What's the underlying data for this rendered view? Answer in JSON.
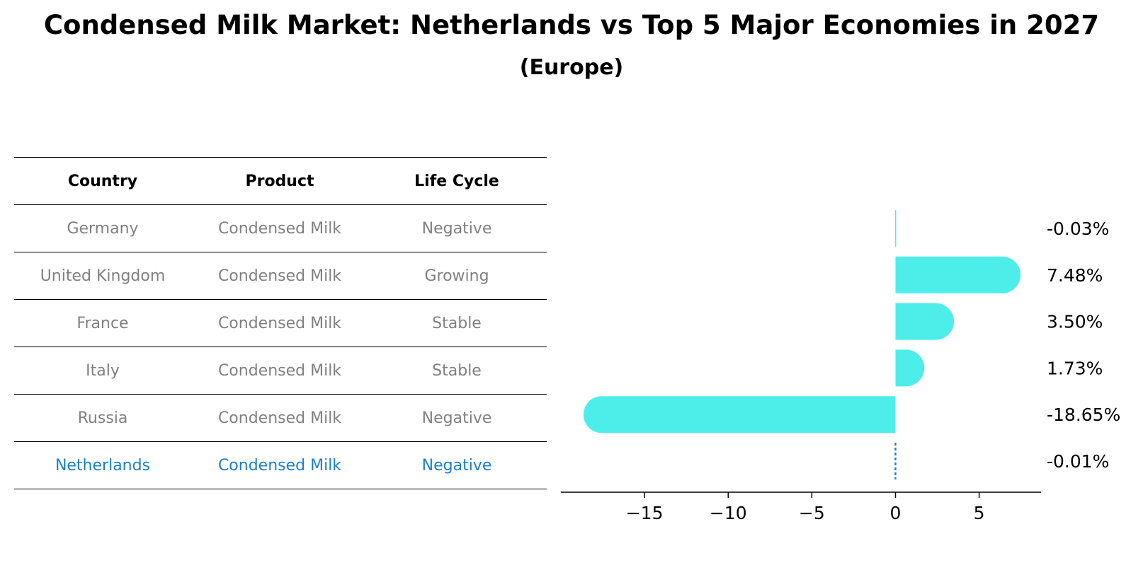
{
  "title": "Condensed Milk Market: Netherlands vs Top 5 Major Economies in 2027",
  "subtitle": "(Europe)",
  "table": {
    "headers": [
      "Country",
      "Product",
      "Life Cycle"
    ],
    "rows": [
      [
        "Germany",
        "Condensed Milk",
        "Negative"
      ],
      [
        "United Kingdom",
        "Condensed Milk",
        "Growing"
      ],
      [
        "France",
        "Condensed Milk",
        "Stable"
      ],
      [
        "Italy",
        "Condensed Milk",
        "Stable"
      ],
      [
        "Russia",
        "Condensed Milk",
        "Negative"
      ],
      [
        "Netherlands",
        "Condensed Milk",
        "Negative"
      ]
    ],
    "highlight_row": 5,
    "text_color": "#808080",
    "highlight_color": "#1a7fd1"
  },
  "chart_data": {
    "type": "bar",
    "orientation": "horizontal",
    "categories": [
      "Germany",
      "United Kingdom",
      "France",
      "Italy",
      "Russia",
      "Netherlands"
    ],
    "values": [
      -0.03,
      7.48,
      3.5,
      1.73,
      -18.65,
      -0.01
    ],
    "value_labels": [
      "-0.03%",
      "7.48%",
      "3.50%",
      "1.73%",
      "-18.65%",
      "-0.01%"
    ],
    "xlim": [
      -20,
      8.7
    ],
    "xticks": [
      -15,
      -10,
      -5,
      0,
      5
    ],
    "xtick_labels": [
      "−15",
      "−10",
      "−5",
      "0",
      "5"
    ],
    "bar_color": "#4deeea",
    "highlight_line_color": "#1a7fd1",
    "grid": false
  }
}
